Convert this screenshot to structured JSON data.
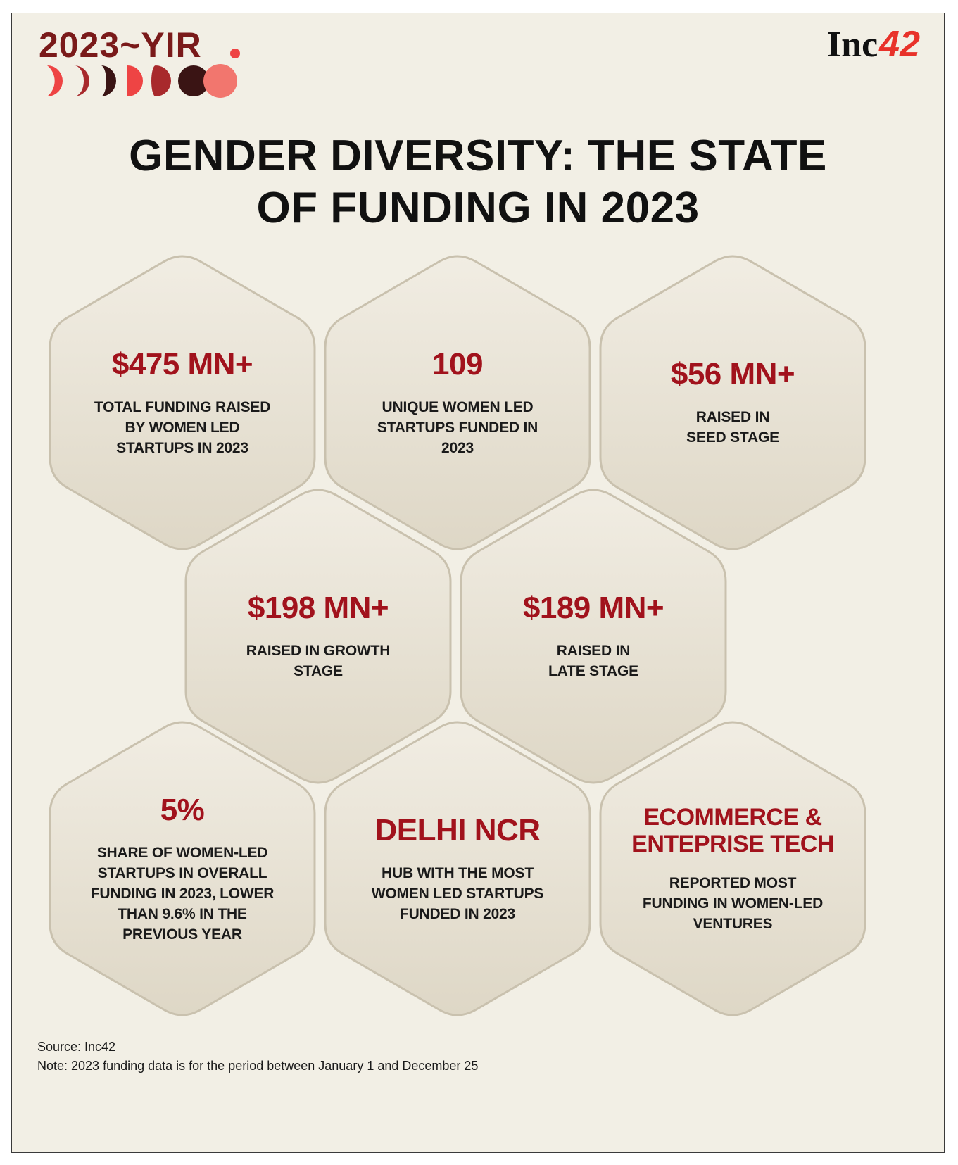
{
  "header": {
    "badge": "2023~YIR",
    "logo_text": "Inc",
    "logo_num": "42"
  },
  "title": {
    "line1": "GENDER DIVERSITY: THE STATE",
    "line2": "OF FUNDING IN 2023"
  },
  "stats": [
    {
      "value": "$475 MN+",
      "label": "TOTAL FUNDING RAISED\nBY WOMEN LED\nSTARTUPS IN 2023"
    },
    {
      "value": "109",
      "label": "UNIQUE WOMEN LED\nSTARTUPS FUNDED IN\n2023"
    },
    {
      "value": "$56 MN+",
      "label": "RAISED IN\nSEED STAGE"
    },
    {
      "value": "$198 MN+",
      "label": "RAISED IN GROWTH\nSTAGE"
    },
    {
      "value": "$189 MN+",
      "label": "RAISED IN\nLATE STAGE"
    },
    {
      "value": "5%",
      "label": "SHARE OF WOMEN-LED\nSTARTUPS IN OVERALL\nFUNDING IN 2023, LOWER\nTHAN 9.6% IN THE\nPREVIOUS YEAR"
    },
    {
      "value": "DELHI NCR",
      "label": "HUB WITH THE MOST\nWOMEN LED STARTUPS\nFUNDED IN 2023"
    },
    {
      "value": "ECOMMERCE &\nENTEPRISE TECH",
      "label": "REPORTED MOST\nFUNDING IN WOMEN-LED\nVENTURES"
    }
  ],
  "footer": {
    "source": "Source: Inc42",
    "note": "Note: 2023 funding data is for the period between January 1 and December 25"
  },
  "colors": {
    "background": "#f2efe5",
    "accent": "#a1121c",
    "hex_fill_top": "#f1ede3",
    "hex_fill_bottom": "#ded7c6",
    "hex_stroke": "#c9c1ae"
  }
}
